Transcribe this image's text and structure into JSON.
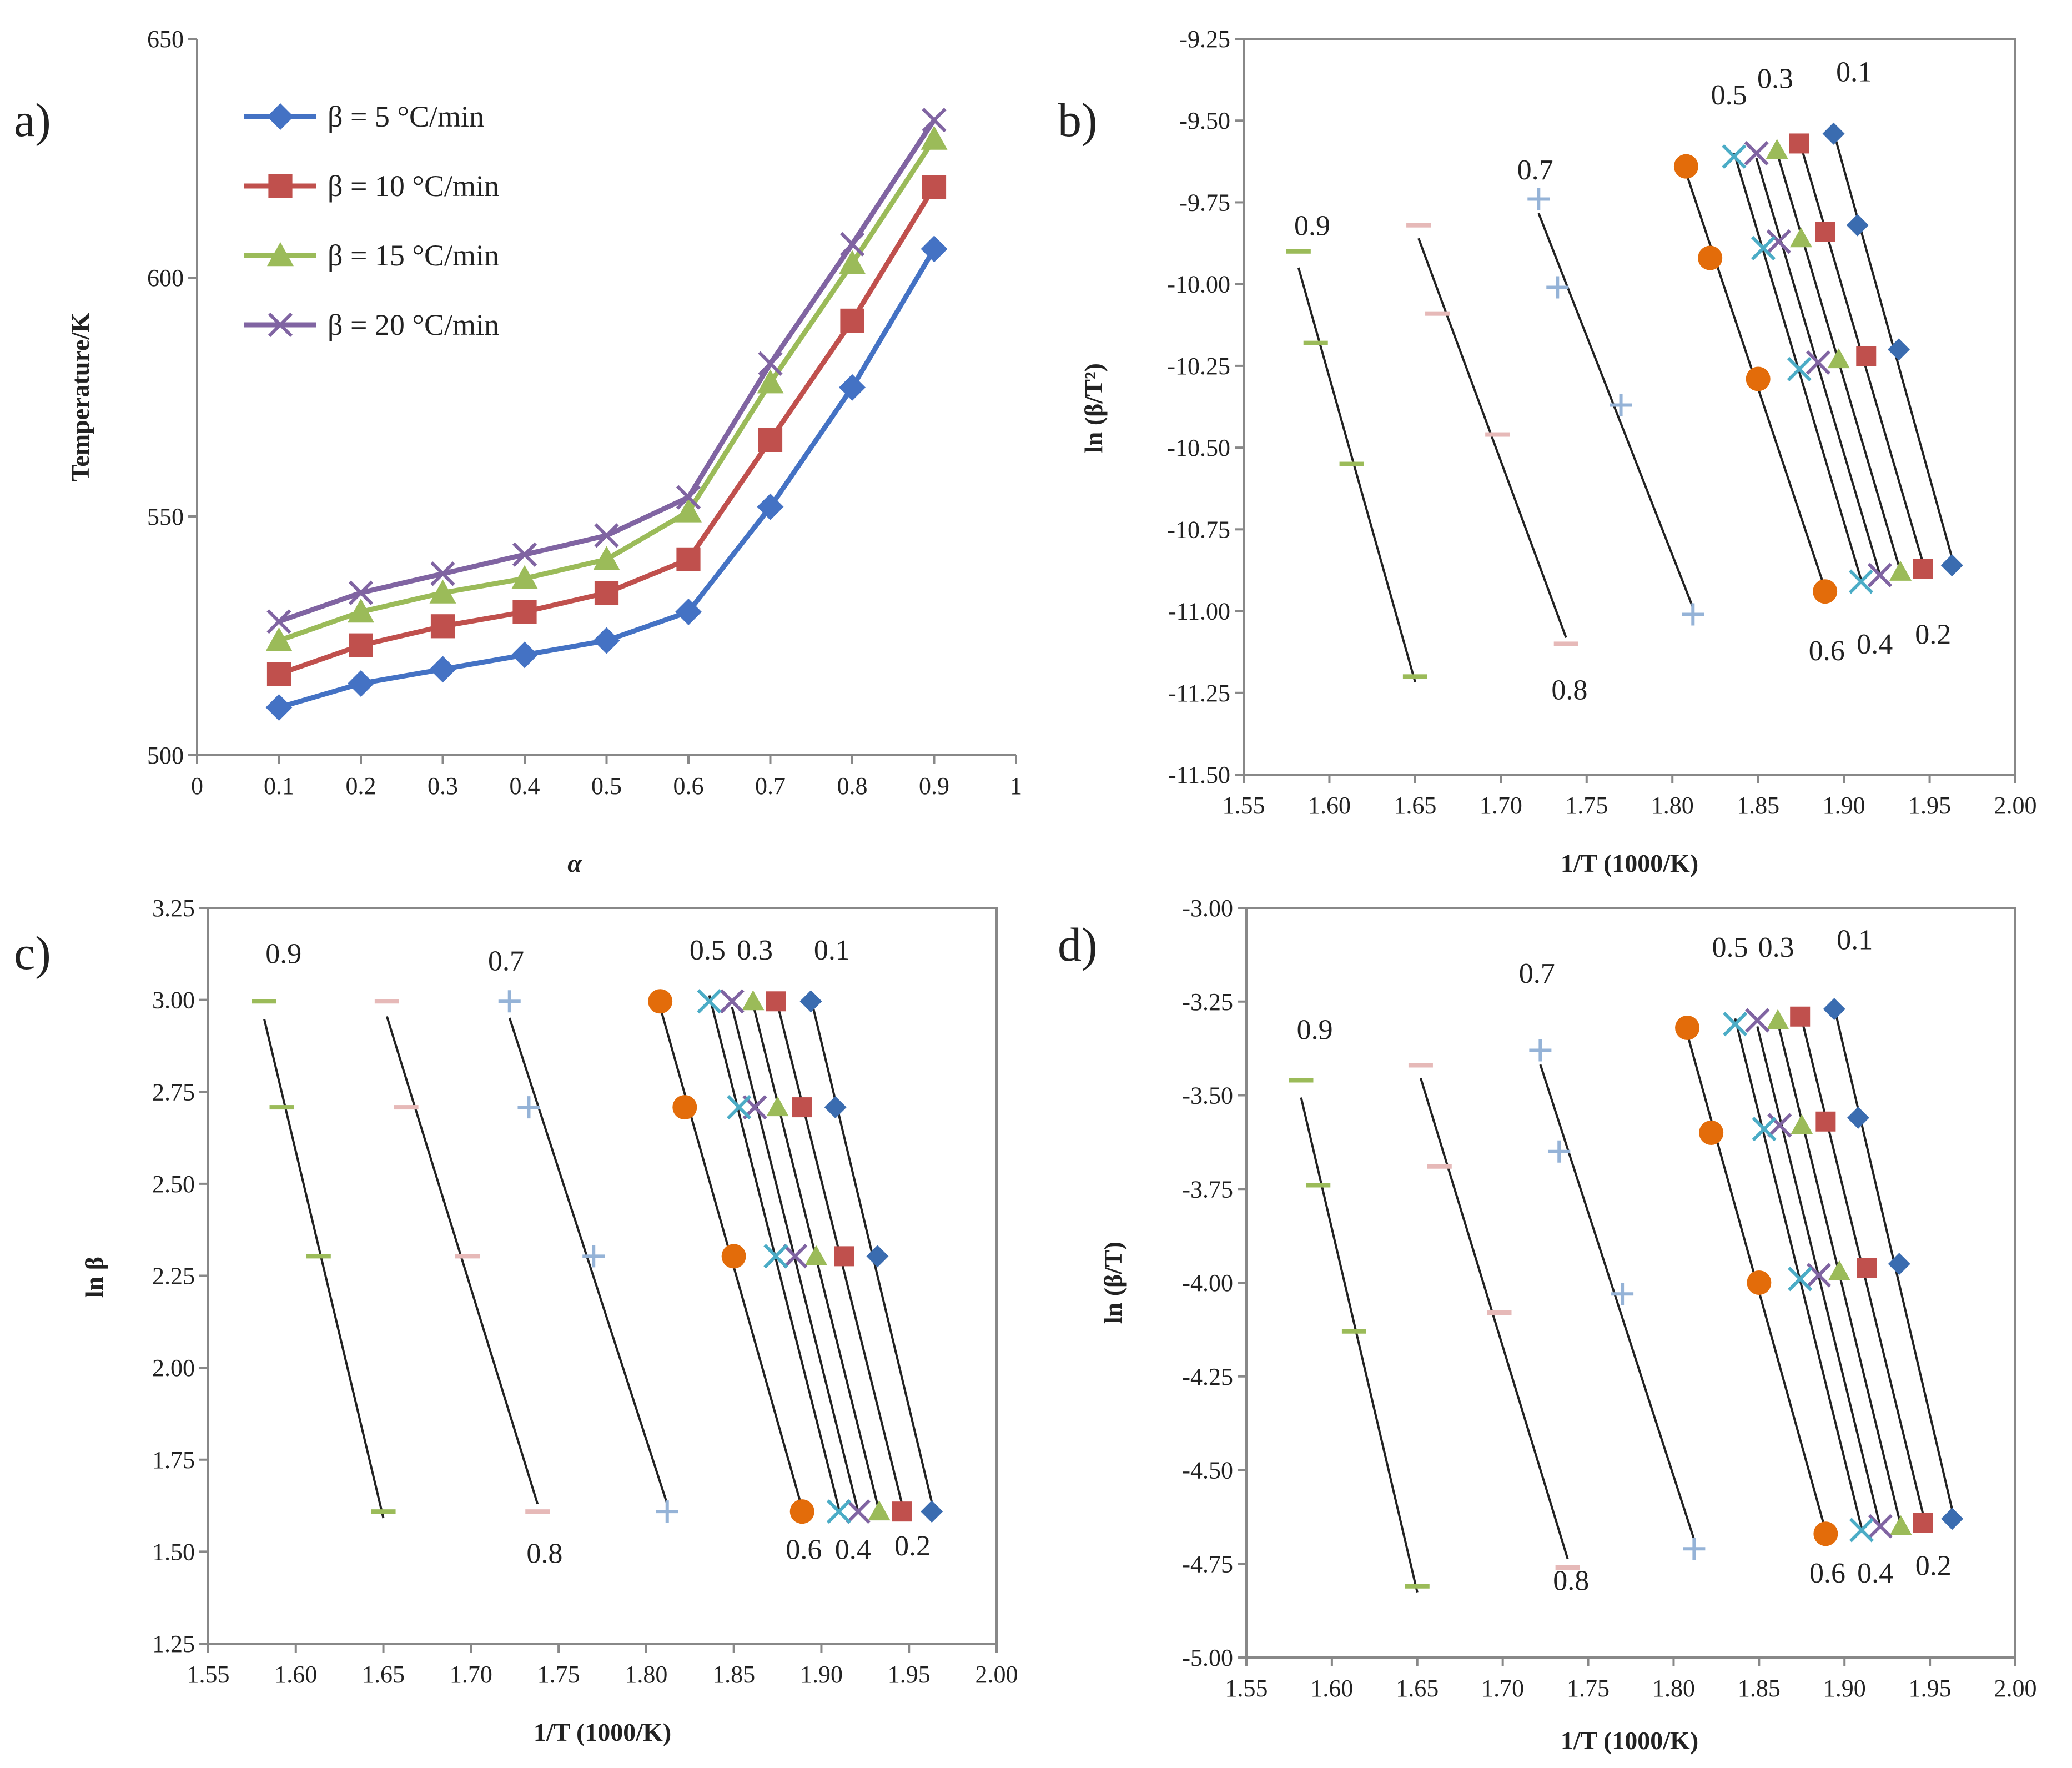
{
  "chart_data": [
    {
      "id": "a",
      "type": "line",
      "panel_label": "a)",
      "xlabel": "α",
      "ylabel": "Temperature/K",
      "xlim": [
        0,
        1
      ],
      "ylim": [
        500,
        650
      ],
      "xticks": [
        0,
        0.1,
        0.2,
        0.3,
        0.4,
        0.5,
        0.6,
        0.7,
        0.8,
        0.9,
        1
      ],
      "xtick_labels": [
        "0",
        "0.1",
        "0.2",
        "0.3",
        "0.4",
        "0.5",
        "0.6",
        "0.7",
        "0.8",
        "0.9",
        "1"
      ],
      "yticks": [
        500,
        550,
        600,
        650
      ],
      "ytick_labels": [
        "500",
        "550",
        "600",
        "650"
      ],
      "legend_position": "top-left",
      "x": [
        0.1,
        0.2,
        0.3,
        0.4,
        0.5,
        0.6,
        0.7,
        0.8,
        0.9
      ],
      "series": [
        {
          "name": "β = 5 °C/min",
          "color": "#4472C4",
          "marker": "diamond",
          "values": [
            510,
            515,
            518,
            521,
            524,
            530,
            552,
            577,
            606
          ]
        },
        {
          "name": "β = 10 °C/min",
          "color": "#C0504D",
          "marker": "square",
          "values": [
            517,
            523,
            527,
            530,
            534,
            541,
            566,
            591,
            619
          ]
        },
        {
          "name": "β = 15 °C/min",
          "color": "#9BBB59",
          "marker": "triangle",
          "values": [
            524,
            530,
            534,
            537,
            541,
            551,
            578,
            603,
            629
          ]
        },
        {
          "name": "β = 20 °C/min",
          "color": "#8064A2",
          "marker": "x",
          "values": [
            528,
            534,
            538,
            542,
            546,
            554,
            582,
            607,
            633
          ]
        }
      ]
    },
    {
      "id": "b",
      "type": "scatter",
      "panel_label": "b)",
      "xlabel": "1/T (1000/K)",
      "ylabel": "ln (β/T²)",
      "xlim": [
        1.55,
        2.0
      ],
      "ylim": [
        -11.5,
        -9.25
      ],
      "xticks": [
        1.55,
        1.6,
        1.65,
        1.7,
        1.75,
        1.8,
        1.85,
        1.9,
        1.95,
        2.0
      ],
      "xtick_labels": [
        "1.55",
        "1.60",
        "1.65",
        "1.70",
        "1.75",
        "1.80",
        "1.85",
        "1.90",
        "1.95",
        "2.00"
      ],
      "yticks": [
        -11.5,
        -11.25,
        -11.0,
        -10.75,
        -10.5,
        -10.25,
        -10.0,
        -9.75,
        -9.5,
        -9.25
      ],
      "ytick_labels": [
        "-11.50",
        "-11.25",
        "-11.00",
        "-10.75",
        "-10.50",
        "-10.25",
        "-10.00",
        "-9.75",
        "-9.50",
        "-9.25"
      ],
      "labels": [
        {
          "text": "0.9",
          "x": 1.59,
          "y": -9.85
        },
        {
          "text": "0.8",
          "x": 1.74,
          "y": -11.27
        },
        {
          "text": "0.7",
          "x": 1.72,
          "y": -9.68
        },
        {
          "text": "0.6",
          "x": 1.89,
          "y": -11.15
        },
        {
          "text": "0.5",
          "x": 1.833,
          "y": -9.45
        },
        {
          "text": "0.4",
          "x": 1.918,
          "y": -11.13
        },
        {
          "text": "0.3",
          "x": 1.86,
          "y": -9.4
        },
        {
          "text": "0.2",
          "x": 1.952,
          "y": -11.1
        },
        {
          "text": "0.1",
          "x": 1.906,
          "y": -9.38
        }
      ],
      "series": [
        {
          "name": "0.1",
          "marker": "diamond",
          "color": "#3A6CB0",
          "x": [
            1.963,
            1.932,
            1.908,
            1.894
          ],
          "y": [
            -10.86,
            -10.2,
            -9.82,
            -9.54
          ],
          "line_x": [
            1.894,
            1.963
          ]
        },
        {
          "name": "0.2",
          "marker": "square",
          "color": "#C0504D",
          "x": [
            1.946,
            1.913,
            1.889,
            1.874
          ],
          "y": [
            -10.87,
            -10.22,
            -9.84,
            -9.57
          ],
          "line_x": [
            1.874,
            1.946
          ]
        },
        {
          "name": "0.3",
          "marker": "triangle",
          "color": "#9BBB59",
          "x": [
            1.933,
            1.897,
            1.875,
            1.861
          ],
          "y": [
            -10.88,
            -10.23,
            -9.86,
            -9.59
          ],
          "line_x": [
            1.861,
            1.933
          ]
        },
        {
          "name": "0.4",
          "marker": "x",
          "color": "#8064A2",
          "x": [
            1.921,
            1.885,
            1.862,
            1.849
          ],
          "y": [
            -10.89,
            -10.24,
            -9.87,
            -9.6
          ],
          "line_x": [
            1.849,
            1.921
          ]
        },
        {
          "name": "0.5",
          "marker": "x",
          "color": "#4BACC6",
          "x": [
            1.91,
            1.874,
            1.853,
            1.836
          ],
          "y": [
            -10.91,
            -10.26,
            -9.89,
            -9.61
          ],
          "line_x": [
            1.836,
            1.91
          ]
        },
        {
          "name": "0.6",
          "marker": "circle",
          "color": "#E36C0A",
          "x": [
            1.889,
            1.85,
            1.822,
            1.808
          ],
          "y": [
            -10.94,
            -10.29,
            -9.92,
            -9.64
          ],
          "line_x": [
            1.808,
            1.889
          ]
        },
        {
          "name": "0.7",
          "marker": "plus",
          "color": "#95B3D7",
          "x": [
            1.812,
            1.77,
            1.733,
            1.722
          ],
          "y": [
            -11.01,
            -10.37,
            -10.01,
            -9.74
          ],
          "line_x": [
            1.722,
            1.812
          ]
        },
        {
          "name": "0.8",
          "marker": "dash",
          "color": "#E6B9B8",
          "x": [
            1.738,
            1.698,
            1.663,
            1.652
          ],
          "y": [
            -11.1,
            -10.46,
            -10.09,
            -9.82
          ],
          "line_x": [
            1.652,
            1.738
          ]
        },
        {
          "name": "0.9",
          "marker": "dash",
          "color": "#9BBB59",
          "x": [
            1.65,
            1.613,
            1.592,
            1.582
          ],
          "y": [
            -11.2,
            -10.55,
            -10.18,
            -9.9
          ],
          "line_x": [
            1.582,
            1.65
          ]
        }
      ]
    },
    {
      "id": "c",
      "type": "scatter",
      "panel_label": "c)",
      "xlabel": "1/T (1000/K)",
      "ylabel": "ln β",
      "xlim": [
        1.55,
        2.0
      ],
      "ylim": [
        1.25,
        3.25
      ],
      "xticks": [
        1.55,
        1.6,
        1.65,
        1.7,
        1.75,
        1.8,
        1.85,
        1.9,
        1.95,
        2.0
      ],
      "xtick_labels": [
        "1.55",
        "1.60",
        "1.65",
        "1.70",
        "1.75",
        "1.80",
        "1.85",
        "1.90",
        "1.95",
        "2.00"
      ],
      "yticks": [
        1.25,
        1.5,
        1.75,
        2.0,
        2.25,
        2.5,
        2.75,
        3.0,
        3.25
      ],
      "ytick_labels": [
        "1.25",
        "1.50",
        "1.75",
        "2.00",
        "2.25",
        "2.50",
        "2.75",
        "3.00",
        "3.25"
      ],
      "labels": [
        {
          "text": "0.9",
          "x": 1.593,
          "y": 3.1
        },
        {
          "text": "0.8",
          "x": 1.742,
          "y": 1.47
        },
        {
          "text": "0.7",
          "x": 1.72,
          "y": 3.08
        },
        {
          "text": "0.6",
          "x": 1.89,
          "y": 1.48
        },
        {
          "text": "0.5",
          "x": 1.835,
          "y": 3.11
        },
        {
          "text": "0.4",
          "x": 1.918,
          "y": 1.48
        },
        {
          "text": "0.3",
          "x": 1.862,
          "y": 3.11
        },
        {
          "text": "0.2",
          "x": 1.952,
          "y": 1.49
        },
        {
          "text": "0.1",
          "x": 1.906,
          "y": 3.11
        }
      ],
      "series": [
        {
          "name": "0.1",
          "marker": "diamond",
          "color": "#3A6CB0",
          "x": [
            1.963,
            1.932,
            1.908,
            1.894
          ],
          "y": [
            1.609,
            2.303,
            2.708,
            2.996
          ],
          "line_x": [
            1.894,
            1.963
          ]
        },
        {
          "name": "0.2",
          "marker": "square",
          "color": "#C0504D",
          "x": [
            1.946,
            1.913,
            1.889,
            1.874
          ],
          "y": [
            1.609,
            2.303,
            2.708,
            2.996
          ],
          "line_x": [
            1.874,
            1.946
          ]
        },
        {
          "name": "0.3",
          "marker": "triangle",
          "color": "#9BBB59",
          "x": [
            1.933,
            1.897,
            1.875,
            1.861
          ],
          "y": [
            1.609,
            2.303,
            2.708,
            2.996
          ],
          "line_x": [
            1.861,
            1.933
          ]
        },
        {
          "name": "0.4",
          "marker": "x",
          "color": "#8064A2",
          "x": [
            1.921,
            1.885,
            1.862,
            1.849
          ],
          "y": [
            1.609,
            2.303,
            2.708,
            2.996
          ],
          "line_x": [
            1.849,
            1.921
          ]
        },
        {
          "name": "0.5",
          "marker": "x",
          "color": "#4BACC6",
          "x": [
            1.91,
            1.874,
            1.853,
            1.836
          ],
          "y": [
            1.609,
            2.303,
            2.708,
            2.996
          ],
          "line_x": [
            1.836,
            1.91
          ]
        },
        {
          "name": "0.6",
          "marker": "circle",
          "color": "#E36C0A",
          "x": [
            1.889,
            1.85,
            1.822,
            1.808
          ],
          "y": [
            1.609,
            2.303,
            2.708,
            2.996
          ],
          "line_x": [
            1.808,
            1.889
          ]
        },
        {
          "name": "0.7",
          "marker": "plus",
          "color": "#95B3D7",
          "x": [
            1.812,
            1.77,
            1.733,
            1.722
          ],
          "y": [
            1.609,
            2.303,
            2.708,
            2.996
          ],
          "line_x": [
            1.722,
            1.812
          ]
        },
        {
          "name": "0.8",
          "marker": "dash",
          "color": "#E6B9B8",
          "x": [
            1.738,
            1.698,
            1.663,
            1.652
          ],
          "y": [
            1.609,
            2.303,
            2.708,
            2.996
          ],
          "line_x": [
            1.652,
            1.738
          ]
        },
        {
          "name": "0.9",
          "marker": "dash",
          "color": "#9BBB59",
          "x": [
            1.65,
            1.613,
            1.592,
            1.582
          ],
          "y": [
            1.609,
            2.303,
            2.708,
            2.996
          ],
          "line_x": [
            1.582,
            1.65
          ]
        }
      ]
    },
    {
      "id": "d",
      "type": "scatter",
      "panel_label": "d)",
      "xlabel": "1/T (1000/K)",
      "ylabel": "ln (β/T)",
      "xlim": [
        1.55,
        2.0
      ],
      "ylim": [
        -5.0,
        -3.0
      ],
      "xticks": [
        1.55,
        1.6,
        1.65,
        1.7,
        1.75,
        1.8,
        1.85,
        1.9,
        1.95,
        2.0
      ],
      "xtick_labels": [
        "1.55",
        "1.60",
        "1.65",
        "1.70",
        "1.75",
        "1.80",
        "1.85",
        "1.90",
        "1.95",
        "2.00"
      ],
      "yticks": [
        -5.0,
        -4.75,
        -4.5,
        -4.25,
        -4.0,
        -3.75,
        -3.5,
        -3.25,
        -3.0
      ],
      "ytick_labels": [
        "-5.00",
        "-4.75",
        "-4.50",
        "-4.25",
        "-4.00",
        "-3.75",
        "-3.50",
        "-3.25",
        "-3.00"
      ],
      "labels": [
        {
          "text": "0.9",
          "x": 1.59,
          "y": -3.35
        },
        {
          "text": "0.8",
          "x": 1.74,
          "y": -4.82
        },
        {
          "text": "0.7",
          "x": 1.72,
          "y": -3.2
        },
        {
          "text": "0.6",
          "x": 1.89,
          "y": -4.8
        },
        {
          "text": "0.5",
          "x": 1.833,
          "y": -3.13
        },
        {
          "text": "0.4",
          "x": 1.918,
          "y": -4.8
        },
        {
          "text": "0.3",
          "x": 1.86,
          "y": -3.13
        },
        {
          "text": "0.2",
          "x": 1.952,
          "y": -4.78
        },
        {
          "text": "0.1",
          "x": 1.906,
          "y": -3.11
        }
      ],
      "series": [
        {
          "name": "0.1",
          "marker": "diamond",
          "color": "#3A6CB0",
          "x": [
            1.963,
            1.932,
            1.908,
            1.894
          ],
          "y": [
            -4.63,
            -3.95,
            -3.56,
            -3.27
          ],
          "line_x": [
            1.894,
            1.963
          ]
        },
        {
          "name": "0.2",
          "marker": "square",
          "color": "#C0504D",
          "x": [
            1.946,
            1.913,
            1.889,
            1.874
          ],
          "y": [
            -4.64,
            -3.96,
            -3.57,
            -3.29
          ],
          "line_x": [
            1.874,
            1.946
          ]
        },
        {
          "name": "0.3",
          "marker": "triangle",
          "color": "#9BBB59",
          "x": [
            1.933,
            1.897,
            1.875,
            1.861
          ],
          "y": [
            -4.65,
            -3.97,
            -3.58,
            -3.3
          ],
          "line_x": [
            1.861,
            1.933
          ]
        },
        {
          "name": "0.4",
          "marker": "x",
          "color": "#8064A2",
          "x": [
            1.921,
            1.885,
            1.862,
            1.849
          ],
          "y": [
            -4.65,
            -3.98,
            -3.58,
            -3.3
          ],
          "line_x": [
            1.849,
            1.921
          ]
        },
        {
          "name": "0.5",
          "marker": "x",
          "color": "#4BACC6",
          "x": [
            1.91,
            1.874,
            1.853,
            1.836
          ],
          "y": [
            -4.66,
            -3.99,
            -3.59,
            -3.31
          ],
          "line_x": [
            1.836,
            1.91
          ]
        },
        {
          "name": "0.6",
          "marker": "circle",
          "color": "#E36C0A",
          "x": [
            1.889,
            1.85,
            1.822,
            1.808
          ],
          "y": [
            -4.67,
            -4.0,
            -3.6,
            -3.32
          ],
          "line_x": [
            1.808,
            1.889
          ]
        },
        {
          "name": "0.7",
          "marker": "plus",
          "color": "#95B3D7",
          "x": [
            1.812,
            1.77,
            1.733,
            1.722
          ],
          "y": [
            -4.71,
            -4.03,
            -3.65,
            -3.38
          ],
          "line_x": [
            1.722,
            1.812
          ]
        },
        {
          "name": "0.8",
          "marker": "dash",
          "color": "#E6B9B8",
          "x": [
            1.738,
            1.698,
            1.663,
            1.652
          ],
          "y": [
            -4.76,
            -4.08,
            -3.69,
            -3.42
          ],
          "line_x": [
            1.652,
            1.738
          ]
        },
        {
          "name": "0.9",
          "marker": "dash",
          "color": "#9BBB59",
          "x": [
            1.65,
            1.613,
            1.592,
            1.582
          ],
          "y": [
            -4.81,
            -4.13,
            -3.74,
            -3.46
          ],
          "line_x": [
            1.582,
            1.65
          ]
        }
      ]
    }
  ]
}
